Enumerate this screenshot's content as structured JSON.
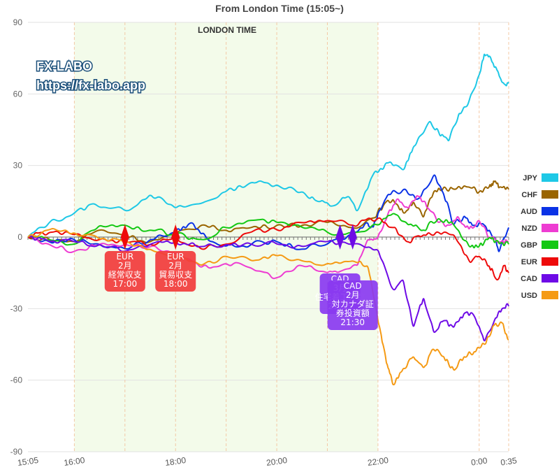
{
  "watermark": {
    "line1": "FX-LABO",
    "line2": "https://fx-labo.app"
  },
  "colors": {
    "JPY": "#1ec8e6",
    "CHF": "#9a6500",
    "AUD": "#0a32e6",
    "NZD": "#ee3cd2",
    "GBP": "#14c814",
    "EUR": "#ee0a0a",
    "CAD": "#6e0ae6",
    "USD": "#f59a14",
    "session_fill": "#f3fbea",
    "grid": "#e2e2e2",
    "vline": "#f3c9a6"
  },
  "chart_data": {
    "type": "line",
    "title": "From London Time  (15:05~)",
    "session_label": "LONDON TIME",
    "session_range": [
      "16:00",
      "22:00"
    ],
    "xlabel": "",
    "ylabel": "",
    "ylim": [
      -90,
      90
    ],
    "yticks": [
      90,
      60,
      30,
      0,
      -30,
      -60,
      -90
    ],
    "x_tick_labels": [
      "15:05",
      "16:00",
      "18:00",
      "20:00",
      "22:00",
      "0:00",
      "0:35"
    ],
    "x_tick_hours": [
      15.0833,
      16,
      18,
      20,
      22,
      24,
      24.5833
    ],
    "x_range_hours": [
      15.0833,
      24.5833
    ],
    "grid": true,
    "legend_position": "right",
    "series": [
      {
        "name": "JPY",
        "points": [
          [
            15.0833,
            0
          ],
          [
            15.5,
            6
          ],
          [
            16,
            10
          ],
          [
            16.4,
            14
          ],
          [
            17,
            11
          ],
          [
            17.5,
            18
          ],
          [
            18,
            12
          ],
          [
            18.5,
            14
          ],
          [
            19,
            19
          ],
          [
            19.5,
            23
          ],
          [
            20,
            22
          ],
          [
            20.5,
            19
          ],
          [
            20.8,
            15
          ],
          [
            21.1,
            13
          ],
          [
            21.4,
            17
          ],
          [
            21.6,
            11
          ],
          [
            21.9,
            26
          ],
          [
            22.2,
            31
          ],
          [
            22.5,
            28
          ],
          [
            22.7,
            38
          ],
          [
            23,
            48
          ],
          [
            23.2,
            44
          ],
          [
            23.4,
            40
          ],
          [
            23.6,
            52
          ],
          [
            23.8,
            57
          ],
          [
            24,
            68
          ],
          [
            24.1,
            77
          ],
          [
            24.2,
            76
          ],
          [
            24.35,
            70
          ],
          [
            24.5,
            64
          ],
          [
            24.5833,
            65
          ]
        ]
      },
      {
        "name": "CHF",
        "points": [
          [
            15.0833,
            0
          ],
          [
            15.5,
            -1
          ],
          [
            16,
            -2
          ],
          [
            16.5,
            3
          ],
          [
            17,
            1
          ],
          [
            17.5,
            -2
          ],
          [
            18,
            1
          ],
          [
            18.5,
            5
          ],
          [
            19,
            3
          ],
          [
            19.5,
            4
          ],
          [
            20,
            5
          ],
          [
            20.5,
            5
          ],
          [
            21,
            6
          ],
          [
            21.5,
            4
          ],
          [
            21.9,
            8
          ],
          [
            22.1,
            13
          ],
          [
            22.3,
            16
          ],
          [
            22.5,
            10
          ],
          [
            22.7,
            15
          ],
          [
            22.9,
            8
          ],
          [
            23.1,
            19
          ],
          [
            23.3,
            21
          ],
          [
            23.5,
            20
          ],
          [
            23.8,
            21
          ],
          [
            24,
            19
          ],
          [
            24.2,
            21
          ],
          [
            24.3,
            23
          ],
          [
            24.4,
            21
          ],
          [
            24.5833,
            20
          ]
        ]
      },
      {
        "name": "AUD",
        "points": [
          [
            15.0833,
            0
          ],
          [
            15.5,
            -2
          ],
          [
            16,
            -1
          ],
          [
            16.5,
            -3
          ],
          [
            17,
            -5
          ],
          [
            17.5,
            -1
          ],
          [
            18,
            2
          ],
          [
            18.3,
            6
          ],
          [
            18.6,
            0
          ],
          [
            19,
            -4
          ],
          [
            19.5,
            -3
          ],
          [
            20,
            -2
          ],
          [
            20.5,
            -5
          ],
          [
            21,
            -3
          ],
          [
            21.5,
            1
          ],
          [
            21.8,
            6
          ],
          [
            21.9,
            4
          ],
          [
            22,
            10
          ],
          [
            22.2,
            18
          ],
          [
            22.5,
            20
          ],
          [
            22.8,
            16
          ],
          [
            23.1,
            26
          ],
          [
            23.3,
            18
          ],
          [
            23.5,
            5
          ],
          [
            23.7,
            9
          ],
          [
            23.9,
            5
          ],
          [
            24.1,
            5
          ],
          [
            24.3,
            0
          ],
          [
            24.4,
            -6
          ],
          [
            24.5833,
            4
          ]
        ]
      },
      {
        "name": "NZD",
        "points": [
          [
            15.0833,
            0
          ],
          [
            15.5,
            -3
          ],
          [
            16,
            -6
          ],
          [
            16.5,
            -3
          ],
          [
            17,
            -3
          ],
          [
            17.5,
            -4
          ],
          [
            18,
            -7
          ],
          [
            18.5,
            -13
          ],
          [
            19,
            -11
          ],
          [
            19.5,
            -13
          ],
          [
            20,
            -17
          ],
          [
            20.5,
            -12
          ],
          [
            21,
            -15
          ],
          [
            21.3,
            -14
          ],
          [
            21.6,
            -12
          ],
          [
            21.8,
            -1
          ],
          [
            22,
            0
          ],
          [
            22.2,
            10
          ],
          [
            22.4,
            16
          ],
          [
            22.6,
            12
          ],
          [
            22.8,
            17
          ],
          [
            23,
            12
          ],
          [
            23.2,
            6
          ],
          [
            23.4,
            5
          ],
          [
            23.6,
            8
          ],
          [
            23.8,
            3
          ],
          [
            24,
            7
          ],
          [
            24.2,
            0
          ],
          [
            24.4,
            -2
          ],
          [
            24.5833,
            -2
          ]
        ]
      },
      {
        "name": "GBP",
        "points": [
          [
            15.0833,
            0
          ],
          [
            15.5,
            -1
          ],
          [
            16,
            -3
          ],
          [
            16.5,
            5
          ],
          [
            17,
            5
          ],
          [
            17.5,
            3
          ],
          [
            18,
            1
          ],
          [
            18.5,
            -1
          ],
          [
            19,
            4
          ],
          [
            19.5,
            7
          ],
          [
            20,
            6
          ],
          [
            20.5,
            4
          ],
          [
            21,
            2
          ],
          [
            21.5,
            2
          ],
          [
            22,
            5
          ],
          [
            22.3,
            10
          ],
          [
            22.6,
            5
          ],
          [
            22.9,
            3
          ],
          [
            23.2,
            8
          ],
          [
            23.5,
            5
          ],
          [
            23.8,
            -4
          ],
          [
            24,
            -4
          ],
          [
            24.2,
            0
          ],
          [
            24.4,
            -3
          ],
          [
            24.5833,
            -3
          ]
        ]
      },
      {
        "name": "EUR",
        "points": [
          [
            15.0833,
            0
          ],
          [
            15.5,
            2
          ],
          [
            16,
            1
          ],
          [
            16.5,
            -1
          ],
          [
            17,
            -2
          ],
          [
            17.5,
            -3
          ],
          [
            18,
            0
          ],
          [
            18.5,
            -5
          ],
          [
            19,
            -3
          ],
          [
            19.5,
            2
          ],
          [
            20,
            3
          ],
          [
            20.5,
            6
          ],
          [
            21,
            7
          ],
          [
            21.5,
            5
          ],
          [
            22,
            8
          ],
          [
            22.3,
            4
          ],
          [
            22.6,
            -2
          ],
          [
            22.9,
            1
          ],
          [
            23.2,
            2
          ],
          [
            23.5,
            1
          ],
          [
            23.8,
            -10
          ],
          [
            24,
            -8
          ],
          [
            24.2,
            -12
          ],
          [
            24.35,
            -18
          ],
          [
            24.5,
            -12
          ],
          [
            24.5833,
            -15
          ]
        ]
      },
      {
        "name": "CAD",
        "points": [
          [
            15.0833,
            0
          ],
          [
            15.5,
            -2
          ],
          [
            16,
            -2
          ],
          [
            16.5,
            -3
          ],
          [
            17,
            -6
          ],
          [
            17.5,
            -3
          ],
          [
            18,
            -2
          ],
          [
            18.5,
            -4
          ],
          [
            19,
            -3
          ],
          [
            19.5,
            -3
          ],
          [
            20,
            -3
          ],
          [
            20.5,
            -4
          ],
          [
            21,
            -2
          ],
          [
            21.5,
            -3
          ],
          [
            22,
            -5
          ],
          [
            22.3,
            -22
          ],
          [
            22.5,
            -18
          ],
          [
            22.7,
            -38
          ],
          [
            22.9,
            -25
          ],
          [
            23.1,
            -40
          ],
          [
            23.3,
            -35
          ],
          [
            23.5,
            -38
          ],
          [
            23.7,
            -32
          ],
          [
            23.9,
            -33
          ],
          [
            24.1,
            -44
          ],
          [
            24.3,
            -35
          ],
          [
            24.45,
            -30
          ],
          [
            24.5833,
            -29
          ]
        ]
      },
      {
        "name": "USD",
        "points": [
          [
            15.0833,
            0
          ],
          [
            15.5,
            3
          ],
          [
            16,
            2
          ],
          [
            16.5,
            -1
          ],
          [
            17,
            -2
          ],
          [
            17.5,
            -5
          ],
          [
            18,
            -8
          ],
          [
            18.5,
            -12
          ],
          [
            19,
            -8
          ],
          [
            19.5,
            -10
          ],
          [
            20,
            -8
          ],
          [
            20.5,
            -10
          ],
          [
            21,
            -11
          ],
          [
            21.5,
            -10
          ],
          [
            21.8,
            -12
          ],
          [
            22,
            -35
          ],
          [
            22.1,
            -45
          ],
          [
            22.2,
            -55
          ],
          [
            22.3,
            -62
          ],
          [
            22.5,
            -55
          ],
          [
            22.7,
            -50
          ],
          [
            22.9,
            -55
          ],
          [
            23.1,
            -47
          ],
          [
            23.3,
            -50
          ],
          [
            23.5,
            -56
          ],
          [
            23.7,
            -50
          ],
          [
            23.9,
            -48
          ],
          [
            24.1,
            -45
          ],
          [
            24.3,
            -37
          ],
          [
            24.45,
            -36
          ],
          [
            24.5833,
            -43
          ]
        ]
      }
    ],
    "events": [
      {
        "currency": "EUR",
        "time": 17.0,
        "lines": [
          "EUR",
          "2月",
          "経常収支",
          "17:00"
        ]
      },
      {
        "currency": "EUR",
        "time": 18.0,
        "lines": [
          "EUR",
          "2月",
          "貿易収支",
          "18:00"
        ]
      },
      {
        "currency": "CAD",
        "time": 21.25,
        "lines": [
          "CAD",
          "3月",
          "住宅着工件数",
          "21:15"
        ]
      },
      {
        "currency": "CAD",
        "time": 21.5,
        "lines": [
          "CAD",
          "2月",
          "対カナダ証",
          "券投資額",
          "21:30"
        ]
      }
    ]
  }
}
